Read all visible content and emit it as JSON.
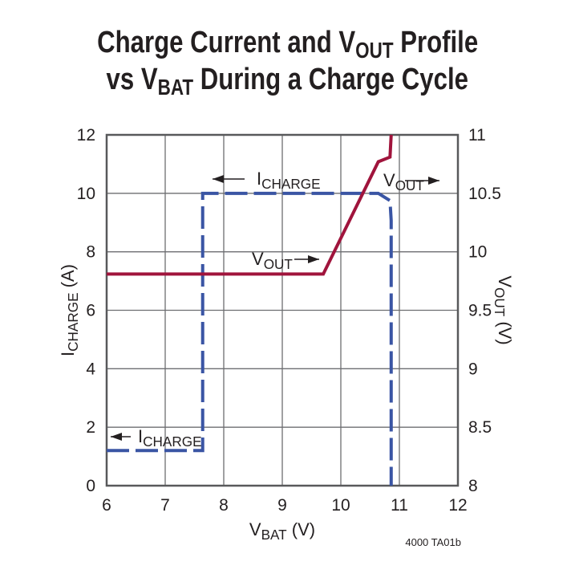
{
  "title": {
    "line1_prefix": "Charge Current and V",
    "line1_sub": "OUT",
    "line1_suffix": " Profile",
    "line2_prefix": "vs V",
    "line2_sub": "BAT",
    "line2_suffix": " During a Charge Cycle"
  },
  "footnote": "4000 TA01b",
  "chart_data": {
    "type": "line",
    "xlabel": {
      "main": "V",
      "sub": "BAT",
      "unit": " (V)"
    },
    "ylabel_left": {
      "main": "I",
      "sub": "CHARGE",
      "unit": " (A)"
    },
    "ylabel_right": {
      "main": "V",
      "sub": "OUT",
      "unit": " (V)"
    },
    "xlim": [
      6,
      12
    ],
    "ylim_left": [
      0,
      12
    ],
    "ylim_right": [
      8,
      11
    ],
    "grid": true,
    "xticks": [
      "6",
      "7",
      "8",
      "9",
      "10",
      "11",
      "12"
    ],
    "yticks_left": [
      "0",
      "2",
      "4",
      "6",
      "8",
      "10",
      "12"
    ],
    "yticks_right": [
      "8",
      "8.5",
      "9",
      "9.5",
      "10",
      "10.5",
      "11"
    ],
    "series": [
      {
        "name": "ICHARGE",
        "axis": "left",
        "style": "dashed",
        "color": "#3a55a4",
        "x": [
          6,
          7.64,
          7.64,
          10.64,
          10.84,
          10.86,
          10.86
        ],
        "y": [
          1.2,
          1.2,
          10,
          10,
          9.75,
          9.07,
          0
        ]
      },
      {
        "name": "VOUT",
        "axis": "right",
        "style": "solid",
        "color": "#a0143c",
        "x": [
          6,
          9.7,
          10.64,
          10.84,
          10.86
        ],
        "y": [
          9.81,
          9.81,
          10.77,
          10.81,
          11
        ]
      }
    ],
    "annotations": [
      {
        "arrow": "left",
        "main": "I",
        "sub": "CHARGE"
      },
      {
        "arrow": "right",
        "main": "V",
        "sub": "OUT"
      },
      {
        "arrow": "right",
        "main": "V",
        "sub": "OUT"
      },
      {
        "arrow": "left",
        "main": "I",
        "sub": "CHARGE"
      }
    ]
  }
}
